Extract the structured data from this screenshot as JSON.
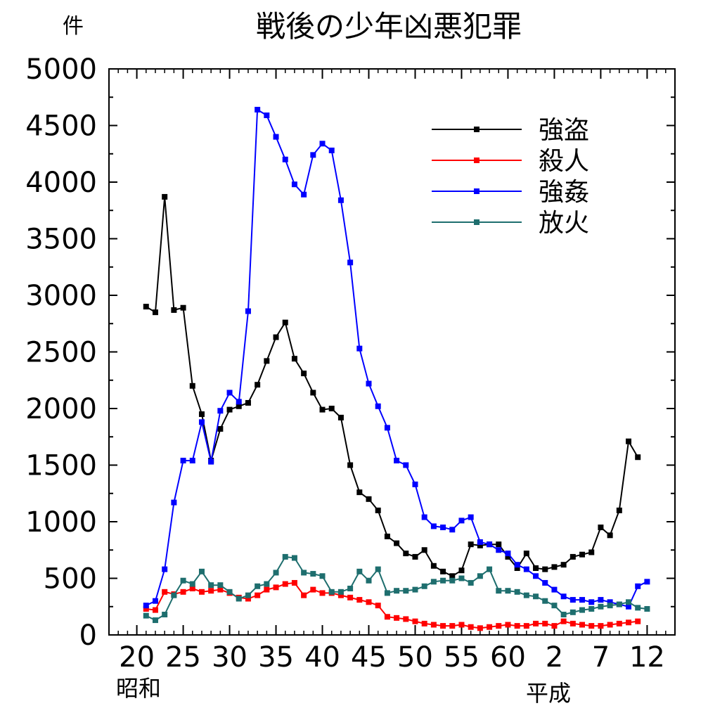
{
  "chart_data": {
    "type": "line",
    "title": "戦後の少年凶悪犯罪",
    "unit_label": "件",
    "ylim": [
      0,
      5000
    ],
    "y_ticks": [
      0,
      500,
      1000,
      1500,
      2000,
      2500,
      3000,
      3500,
      4000,
      4500,
      5000
    ],
    "x_tick_labels": [
      "20",
      "25",
      "30",
      "35",
      "40",
      "45",
      "50",
      "55",
      "60",
      "2",
      "7",
      "12"
    ],
    "era_labels": {
      "showa": "昭和",
      "heisei": "平成"
    },
    "x_domain": [
      1942,
      2003
    ],
    "legend_position": "top-right",
    "x": [
      1946,
      1947,
      1948,
      1949,
      1950,
      1951,
      1952,
      1953,
      1954,
      1955,
      1956,
      1957,
      1958,
      1959,
      1960,
      1961,
      1962,
      1963,
      1964,
      1965,
      1966,
      1967,
      1968,
      1969,
      1970,
      1971,
      1972,
      1973,
      1974,
      1975,
      1976,
      1977,
      1978,
      1979,
      1980,
      1981,
      1982,
      1983,
      1984,
      1985,
      1986,
      1987,
      1988,
      1989,
      1990,
      1991,
      1992,
      1993,
      1994,
      1995,
      1996,
      1997,
      1998,
      1999,
      2000
    ],
    "series": [
      {
        "name": "強盗",
        "color": "#000000",
        "values": [
          2900,
          2850,
          3870,
          2870,
          2890,
          2200,
          1950,
          1540,
          1820,
          1990,
          2020,
          2050,
          2210,
          2420,
          2630,
          2760,
          2440,
          2310,
          2140,
          1990,
          2000,
          1920,
          1500,
          1260,
          1200,
          1100,
          870,
          810,
          720,
          690,
          750,
          610,
          560,
          520,
          570,
          800,
          790,
          800,
          800,
          690,
          590,
          720,
          590,
          580,
          600,
          620,
          690,
          710,
          730,
          950,
          880,
          1100,
          1710,
          1570,
          null
        ]
      },
      {
        "name": "殺人",
        "color": "#ff0000",
        "values": [
          230,
          220,
          380,
          360,
          380,
          410,
          380,
          390,
          400,
          370,
          330,
          320,
          350,
          400,
          420,
          450,
          460,
          350,
          400,
          370,
          370,
          350,
          330,
          310,
          290,
          260,
          160,
          150,
          140,
          120,
          100,
          90,
          80,
          80,
          90,
          70,
          60,
          70,
          80,
          90,
          80,
          80,
          100,
          100,
          80,
          120,
          100,
          90,
          80,
          80,
          90,
          100,
          110,
          120,
          null
        ]
      },
      {
        "name": "強姦",
        "color": "#0000ff",
        "values": [
          260,
          300,
          580,
          1170,
          1540,
          1540,
          1880,
          1530,
          1980,
          2140,
          2060,
          2860,
          4640,
          4590,
          4400,
          4200,
          3980,
          3890,
          4240,
          4340,
          4280,
          3840,
          3290,
          2530,
          2220,
          2020,
          1830,
          1540,
          1500,
          1330,
          1040,
          960,
          950,
          930,
          1010,
          1040,
          820,
          800,
          750,
          720,
          620,
          580,
          520,
          460,
          400,
          340,
          310,
          310,
          290,
          310,
          290,
          270,
          250,
          430,
          470
        ]
      },
      {
        "name": "放火",
        "color": "#1e6e6e",
        "values": [
          170,
          130,
          180,
          350,
          480,
          450,
          560,
          440,
          440,
          380,
          320,
          350,
          430,
          450,
          550,
          690,
          680,
          550,
          540,
          520,
          380,
          380,
          410,
          560,
          480,
          580,
          370,
          390,
          390,
          400,
          430,
          470,
          480,
          480,
          500,
          460,
          520,
          580,
          390,
          390,
          380,
          350,
          340,
          300,
          260,
          180,
          200,
          220,
          230,
          250,
          260,
          270,
          290,
          240,
          230
        ]
      }
    ]
  }
}
